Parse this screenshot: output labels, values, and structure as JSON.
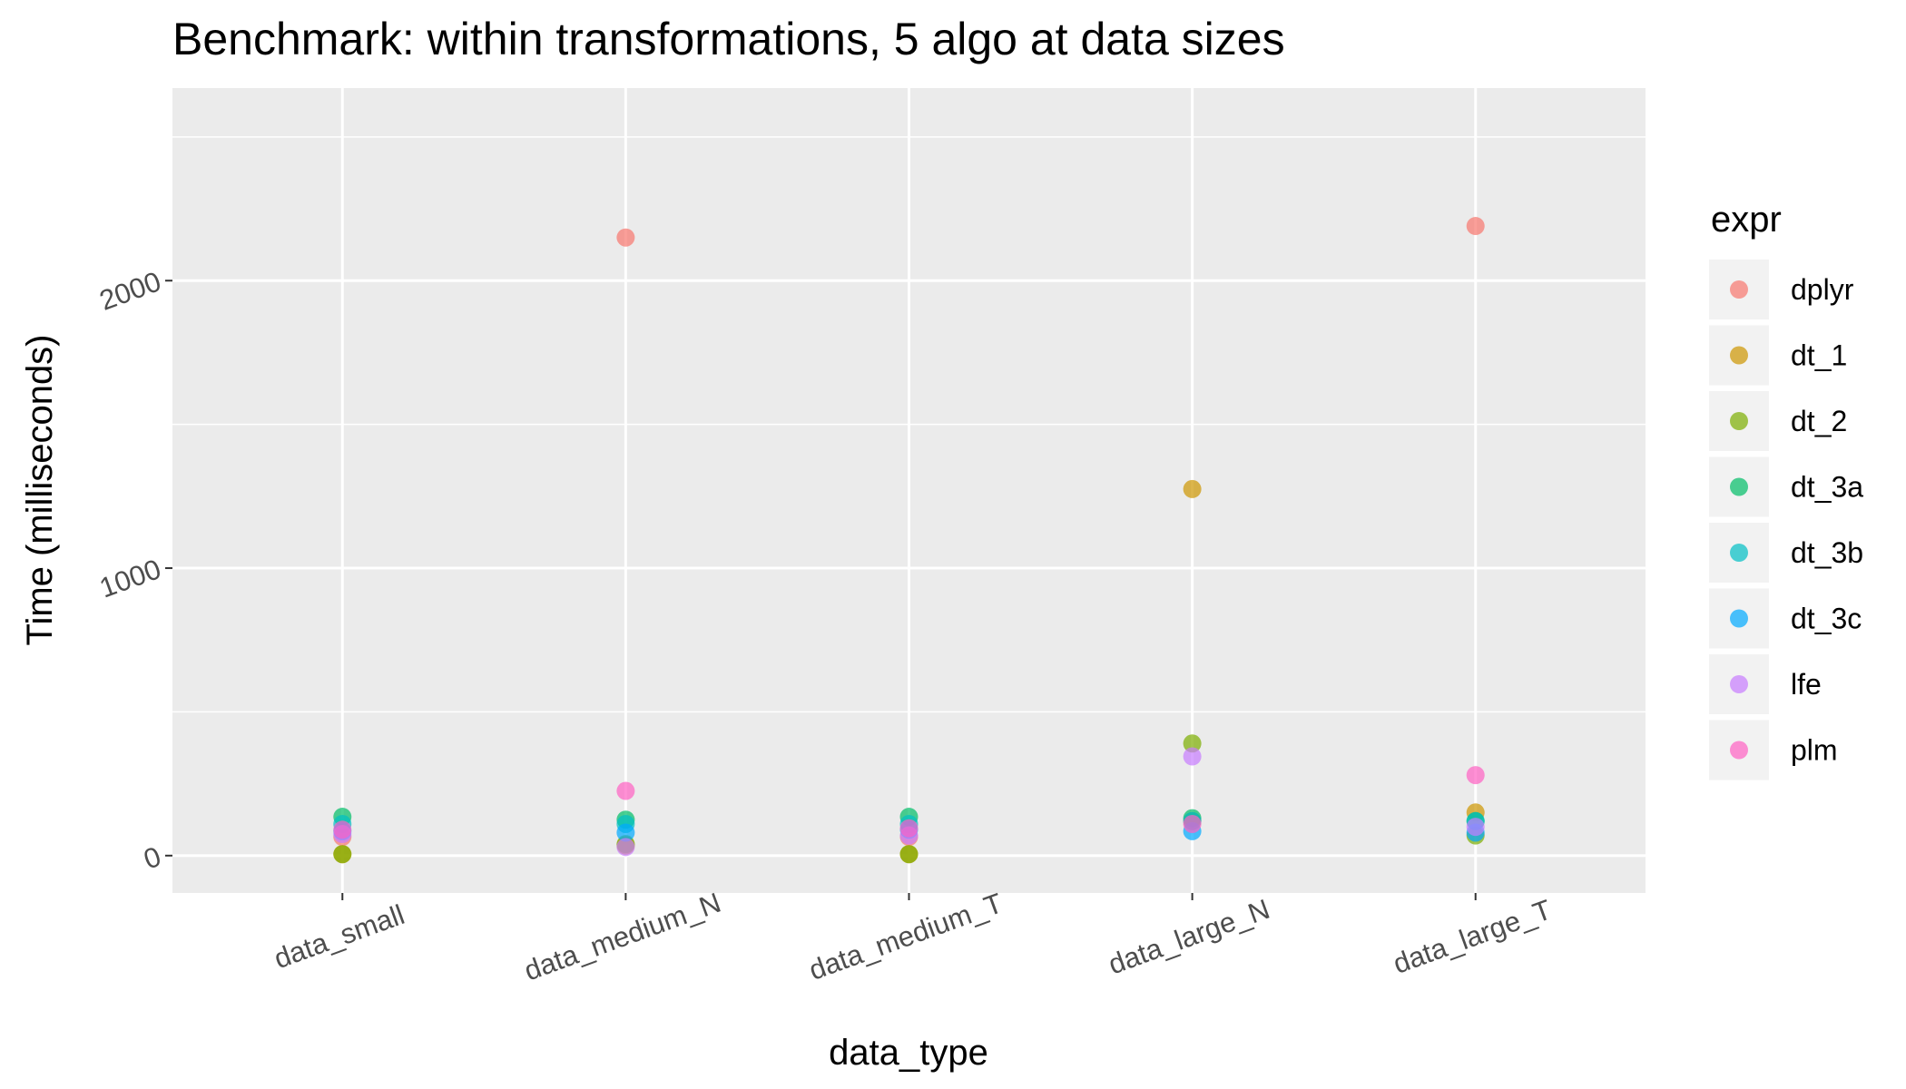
{
  "chart_data": {
    "type": "scatter",
    "title": "Benchmark: within transformations, 5 algo at  data sizes",
    "xlabel": "data_type",
    "ylabel": "Time (milliseconds)",
    "categories": [
      "data_small",
      "data_medium_N",
      "data_medium_T",
      "data_large_N",
      "data_large_T"
    ],
    "ylim": [
      -130,
      2670
    ],
    "yticks": [
      0,
      1000,
      2000
    ],
    "y_minor_ticks": [
      500,
      1500,
      2500
    ],
    "legend_title": "expr",
    "legend_position": "right",
    "grid": true,
    "background": "#ebebeb",
    "series": [
      {
        "name": "dplyr",
        "color": "#F8766D",
        "values": [
          65,
          2150,
          65,
          120,
          2190
        ]
      },
      {
        "name": "dt_1",
        "color": "#CD9600",
        "values": [
          5,
          35,
          5,
          1275,
          150
        ]
      },
      {
        "name": "dt_2",
        "color": "#7CAE00",
        "values": [
          5,
          40,
          5,
          390,
          70
        ]
      },
      {
        "name": "dt_3a",
        "color": "#00BE67",
        "values": [
          135,
          125,
          135,
          130,
          120
        ]
      },
      {
        "name": "dt_3b",
        "color": "#00BFC4",
        "values": [
          110,
          110,
          110,
          120,
          120
        ]
      },
      {
        "name": "dt_3c",
        "color": "#00A9FF",
        "values": [
          85,
          80,
          90,
          85,
          80
        ]
      },
      {
        "name": "lfe",
        "color": "#C77CFF",
        "values": [
          75,
          30,
          70,
          345,
          100
        ]
      },
      {
        "name": "plm",
        "color": "#FF61C3",
        "values": [
          90,
          225,
          95,
          110,
          280
        ]
      }
    ]
  }
}
